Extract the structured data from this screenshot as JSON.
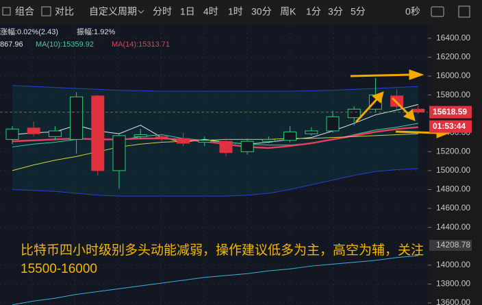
{
  "toolbar": [
    "组合",
    "对比",
    "自定义周期",
    "分时",
    "1日",
    "4时",
    "1时",
    "30分",
    "周K",
    "1分",
    "3分",
    "5分",
    "0秒"
  ],
  "active_index": 5,
  "indicators": [
    "涨幅:0.02%(2.43)",
    "振幅:1.92%",
    "867.96",
    "MA(10):15359.92",
    "MA(14):15313.71"
  ],
  "chart_data": {
    "type": "candlestick",
    "ylim": [
      13578,
      16515
    ],
    "yticks": [
      {
        "value": 13600,
        "label": "13600.00"
      },
      {
        "value": 13800,
        "label": "13800.00"
      },
      {
        "value": 14000,
        "label": "14000.00"
      },
      {
        "value": 14400,
        "label": "14400.00"
      },
      {
        "value": 14600,
        "label": "14600.00"
      },
      {
        "value": 14800,
        "label": "14800.00"
      },
      {
        "value": 15000,
        "label": "15000.00"
      },
      {
        "value": 15200,
        "label": "15200.00"
      },
      {
        "value": 15400,
        "label": "15400.00"
      },
      {
        "value": 15800,
        "label": "15800.00"
      },
      {
        "value": 16000,
        "label": "16000.00"
      },
      {
        "value": 16200,
        "label": "16200.00"
      },
      {
        "value": 16400,
        "label": "16400.00"
      }
    ],
    "open": [
      15330,
      15450,
      15360,
      15330,
      15790,
      15000,
      15360,
      15360,
      15340,
      15300,
      15310,
      15200,
      15310,
      15320,
      15390,
      15420,
      15560,
      15650,
      15790,
      15650
    ],
    "high": [
      15470,
      15520,
      15470,
      15830,
      15800,
      15400,
      15440,
      15390,
      15400,
      15360,
      15340,
      15340,
      15360,
      15470,
      15460,
      15630,
      15680,
      15980,
      15860,
      15690
    ],
    "low": [
      15280,
      15360,
      15320,
      15180,
      14950,
      14810,
      15330,
      15310,
      15260,
      15260,
      15150,
      15170,
      15290,
      15300,
      15370,
      15400,
      15480,
      15620,
      15640,
      15600
    ],
    "close": [
      15440,
      15390,
      15420,
      15780,
      15000,
      15370,
      15380,
      15350,
      15290,
      15320,
      15190,
      15310,
      15330,
      15410,
      15420,
      15570,
      15650,
      15800,
      15680,
      15618.59
    ],
    "up_color": "#26d07c",
    "down_color": "#e0313f",
    "series": [
      {
        "color": "#2a3fd6",
        "values": [
          15900,
          15890,
          15880,
          15870,
          15860,
          15850,
          15845,
          15840,
          15840,
          15840,
          15840,
          15840,
          15840,
          15840,
          15845,
          15850,
          15860,
          15870,
          15880,
          15890
        ]
      },
      {
        "color": "#2a3fd6",
        "values": [
          14800,
          14790,
          14780,
          14760,
          14740,
          14730,
          14730,
          14730,
          14730,
          14730,
          14730,
          14740,
          14760,
          14800,
          14850,
          14900,
          14950,
          14990,
          15010,
          15020
        ]
      },
      {
        "color": "#e6e6e6",
        "values": [
          15380,
          15400,
          15410,
          15480,
          15420,
          15390,
          15480,
          15350,
          15300,
          15330,
          15300,
          15280,
          15300,
          15330,
          15350,
          15420,
          15500,
          15590,
          15640,
          15700
        ]
      },
      {
        "color": "#3cd0a0",
        "values": [
          15250,
          15280,
          15300,
          15330,
          15340,
          15320,
          15360,
          15380,
          15340,
          15320,
          15300,
          15280,
          15270,
          15270,
          15290,
          15330,
          15380,
          15430,
          15460,
          15500
        ]
      },
      {
        "color": "#e0405a",
        "values": [
          15310,
          15320,
          15330,
          15340,
          15330,
          15330,
          15340,
          15340,
          15330,
          15310,
          15280,
          15250,
          15240,
          15260,
          15290,
          15330,
          15370,
          15410,
          15440,
          15460
        ]
      },
      {
        "color": "#d8d040",
        "values": [
          15000,
          15060,
          15110,
          15150,
          15200,
          15250,
          15280,
          15300,
          15310,
          15320,
          15330,
          15330,
          15330,
          15340,
          15340,
          15350,
          15360,
          15370,
          15380,
          15390
        ]
      },
      {
        "color": "#40b0d8",
        "values": [
          13580,
          13620,
          13650,
          13690,
          13720,
          13750,
          13780,
          13810,
          13840,
          13870,
          13890,
          13910,
          13940,
          13960,
          13990,
          14010,
          14030,
          14050,
          14080,
          14100
        ]
      }
    ],
    "last_price": {
      "value": 15618.59,
      "label": "15618.59"
    },
    "countdown": "01:53:44",
    "marker": {
      "value": 14208.78,
      "label": "14208.78"
    },
    "annotation": [
      "比特币四小时级别多头动能减弱，操作建议低多为主，高空为辅，关注",
      "15500-16000"
    ]
  }
}
